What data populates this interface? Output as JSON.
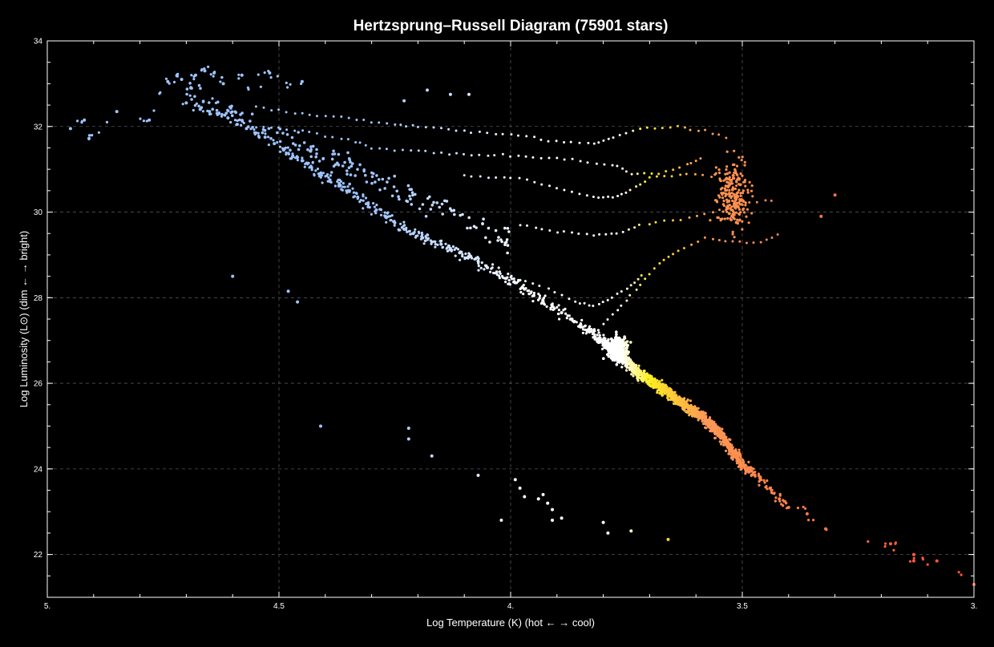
{
  "chart_data": {
    "type": "scatter",
    "title": "Hertzsprung–Russell Diagram (75901 stars)",
    "xlabel": "Log Temperature (K) (hot ← → cool)",
    "ylabel": "Log Luminosity (L⊙) (dim ← → bright)",
    "xlim": [
      5.0,
      3.0
    ],
    "ylim": [
      21.0,
      34.0
    ],
    "x_reversed": true,
    "grid": true,
    "x_ticks": [
      5.0,
      4.5,
      4.0,
      3.5,
      3.0
    ],
    "x_tick_labels": [
      "5.",
      "4.5",
      "4.",
      "3.5",
      "3."
    ],
    "y_ticks": [
      22,
      24,
      26,
      28,
      30,
      32,
      34
    ],
    "y_tick_labels": [
      "22",
      "24",
      "26",
      "28",
      "30",
      "32",
      "34"
    ],
    "colors": {
      "background": "#000000",
      "hot": "#9ec4ff",
      "white": "#ffffff",
      "yellow": "#ffee22",
      "orange": "#ff9955",
      "red": "#ff5533"
    },
    "series": [
      {
        "group": "main-sequence",
        "points": [
          [
            4.95,
            31.95
          ],
          [
            4.92,
            32.15
          ],
          [
            4.91,
            31.72
          ],
          [
            4.85,
            32.35
          ],
          [
            4.78,
            32.15
          ],
          [
            4.74,
            33.05
          ],
          [
            4.72,
            33.2
          ],
          [
            4.71,
            33.1
          ],
          [
            4.68,
            33.2
          ],
          [
            4.66,
            33.3
          ],
          [
            4.64,
            33.25
          ],
          [
            4.62,
            33.0
          ],
          [
            4.58,
            33.2
          ],
          [
            4.52,
            33.25
          ],
          [
            4.45,
            33.05
          ],
          [
            4.7,
            32.55
          ],
          [
            4.67,
            32.4
          ],
          [
            4.65,
            32.35
          ],
          [
            4.63,
            32.3
          ],
          [
            4.61,
            32.2
          ],
          [
            4.59,
            32.05
          ],
          [
            4.57,
            31.95
          ],
          [
            4.55,
            31.85
          ],
          [
            4.53,
            31.75
          ],
          [
            4.51,
            31.6
          ],
          [
            4.49,
            31.45
          ],
          [
            4.47,
            31.3
          ],
          [
            4.45,
            31.2
          ],
          [
            4.43,
            31.05
          ],
          [
            4.41,
            30.9
          ],
          [
            4.39,
            30.75
          ],
          [
            4.37,
            30.65
          ],
          [
            4.35,
            30.5
          ],
          [
            4.33,
            30.35
          ],
          [
            4.31,
            30.2
          ],
          [
            4.29,
            30.05
          ],
          [
            4.27,
            29.9
          ],
          [
            4.25,
            29.75
          ],
          [
            4.23,
            29.6
          ],
          [
            4.21,
            29.5
          ],
          [
            4.19,
            29.4
          ],
          [
            4.17,
            29.3
          ],
          [
            4.15,
            29.25
          ],
          [
            4.13,
            29.15
          ],
          [
            4.11,
            29.05
          ],
          [
            4.09,
            28.95
          ],
          [
            4.07,
            28.85
          ],
          [
            4.05,
            28.7
          ],
          [
            4.03,
            28.6
          ],
          [
            4.01,
            28.45
          ],
          [
            3.99,
            28.35
          ],
          [
            3.97,
            28.2
          ],
          [
            3.95,
            28.05
          ],
          [
            3.93,
            27.9
          ],
          [
            3.91,
            27.8
          ],
          [
            3.89,
            27.65
          ],
          [
            3.87,
            27.5
          ],
          [
            3.85,
            27.35
          ],
          [
            3.83,
            27.2
          ],
          [
            3.81,
            27.05
          ],
          [
            3.79,
            26.9
          ],
          [
            3.78,
            26.8
          ],
          [
            3.77,
            26.7
          ],
          [
            3.76,
            26.6
          ],
          [
            3.75,
            26.5
          ],
          [
            3.74,
            26.4
          ],
          [
            3.73,
            26.3
          ],
          [
            3.72,
            26.2
          ],
          [
            3.71,
            26.15
          ],
          [
            3.7,
            26.05
          ],
          [
            3.69,
            26.0
          ],
          [
            3.68,
            25.95
          ],
          [
            3.67,
            25.85
          ],
          [
            3.66,
            25.8
          ],
          [
            3.65,
            25.7
          ],
          [
            3.64,
            25.6
          ],
          [
            3.63,
            25.55
          ],
          [
            3.62,
            25.45
          ],
          [
            3.61,
            25.4
          ],
          [
            3.6,
            25.3
          ],
          [
            3.59,
            25.25
          ],
          [
            3.58,
            25.15
          ],
          [
            3.57,
            25.05
          ],
          [
            3.56,
            24.95
          ],
          [
            3.55,
            24.85
          ],
          [
            3.54,
            24.7
          ],
          [
            3.53,
            24.55
          ],
          [
            3.52,
            24.4
          ],
          [
            3.51,
            24.25
          ],
          [
            3.5,
            24.1
          ],
          [
            3.48,
            23.95
          ],
          [
            3.46,
            23.75
          ],
          [
            3.44,
            23.55
          ],
          [
            3.42,
            23.3
          ],
          [
            3.4,
            23.1
          ],
          [
            3.36,
            22.95
          ],
          [
            3.32,
            22.6
          ],
          [
            3.18,
            22.25
          ],
          [
            3.13,
            22.0
          ],
          [
            3.13,
            21.85
          ],
          [
            3.08,
            21.85
          ],
          [
            3.0,
            21.3
          ]
        ]
      },
      {
        "group": "outliers",
        "points": [
          [
            4.6,
            28.5
          ],
          [
            4.48,
            28.15
          ],
          [
            4.46,
            27.9
          ],
          [
            4.41,
            25.0
          ],
          [
            4.22,
            24.95
          ],
          [
            4.22,
            24.7
          ],
          [
            4.17,
            24.3
          ],
          [
            4.07,
            23.85
          ],
          [
            3.99,
            23.75
          ],
          [
            3.98,
            23.55
          ],
          [
            3.97,
            23.35
          ],
          [
            3.94,
            23.3
          ],
          [
            3.93,
            23.4
          ],
          [
            3.92,
            23.2
          ],
          [
            3.91,
            23.05
          ],
          [
            3.89,
            22.85
          ],
          [
            4.02,
            22.8
          ],
          [
            3.91,
            22.8
          ],
          [
            3.8,
            22.75
          ],
          [
            3.79,
            22.5
          ],
          [
            3.74,
            22.55
          ],
          [
            3.66,
            22.35
          ],
          [
            4.23,
            32.6
          ],
          [
            4.18,
            32.85
          ],
          [
            4.13,
            32.75
          ],
          [
            4.09,
            32.75
          ],
          [
            3.3,
            30.4
          ],
          [
            3.33,
            29.9
          ]
        ]
      }
    ],
    "tracks": [
      {
        "name": "giant-branch-upper",
        "points": [
          [
            4.2,
            32.0
          ],
          [
            4.0,
            31.8
          ],
          [
            3.9,
            31.65
          ],
          [
            3.82,
            31.6
          ],
          [
            3.78,
            31.75
          ],
          [
            3.72,
            31.95
          ],
          [
            3.64,
            32.0
          ],
          [
            3.58,
            31.9
          ],
          [
            3.52,
            31.7
          ]
        ]
      },
      {
        "name": "giant-branch-2",
        "points": [
          [
            4.3,
            31.5
          ],
          [
            4.1,
            31.35
          ],
          [
            3.95,
            31.3
          ],
          [
            3.85,
            31.2
          ],
          [
            3.78,
            31.1
          ],
          [
            3.74,
            30.9
          ],
          [
            3.68,
            30.9
          ],
          [
            3.62,
            31.1
          ],
          [
            3.58,
            31.3
          ]
        ]
      },
      {
        "name": "giant-branch-3",
        "points": [
          [
            4.1,
            30.85
          ],
          [
            3.98,
            30.8
          ],
          [
            3.9,
            30.55
          ],
          [
            3.82,
            30.35
          ],
          [
            3.78,
            30.35
          ],
          [
            3.74,
            30.5
          ],
          [
            3.7,
            30.8
          ],
          [
            3.62,
            30.9
          ],
          [
            3.55,
            30.8
          ],
          [
            3.5,
            30.6
          ]
        ]
      },
      {
        "name": "giant-branch-4",
        "points": [
          [
            3.98,
            29.7
          ],
          [
            3.9,
            29.55
          ],
          [
            3.82,
            29.45
          ],
          [
            3.77,
            29.5
          ],
          [
            3.72,
            29.7
          ],
          [
            3.65,
            29.8
          ],
          [
            3.58,
            29.95
          ],
          [
            3.5,
            30.2
          ],
          [
            3.42,
            30.3
          ]
        ]
      },
      {
        "name": "red-giant-branch",
        "points": [
          [
            3.8,
            27.4
          ],
          [
            3.76,
            27.8
          ],
          [
            3.72,
            28.3
          ],
          [
            3.68,
            28.8
          ],
          [
            3.64,
            29.1
          ],
          [
            3.58,
            29.4
          ],
          [
            3.52,
            29.3
          ],
          [
            3.46,
            29.3
          ],
          [
            3.41,
            29.5
          ]
        ]
      },
      {
        "name": "subgiant-branch",
        "points": [
          [
            4.0,
            28.5
          ],
          [
            3.92,
            28.2
          ],
          [
            3.86,
            27.9
          ],
          [
            3.82,
            27.8
          ],
          [
            3.78,
            28.0
          ],
          [
            3.74,
            28.3
          ],
          [
            3.71,
            28.6
          ]
        ]
      },
      {
        "name": "upper-branch-a",
        "points": [
          [
            4.55,
            32.45
          ],
          [
            4.45,
            32.3
          ],
          [
            4.35,
            32.2
          ],
          [
            4.25,
            32.05
          ],
          [
            4.2,
            32.0
          ]
        ]
      },
      {
        "name": "upper-branch-b",
        "points": [
          [
            4.55,
            32.0
          ],
          [
            4.45,
            31.9
          ],
          [
            4.35,
            31.7
          ],
          [
            4.3,
            31.5
          ]
        ]
      }
    ]
  }
}
